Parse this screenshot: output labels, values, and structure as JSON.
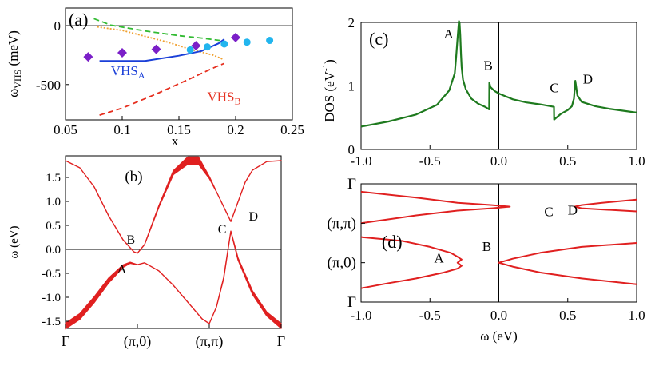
{
  "chart_data": [
    {
      "id": "a",
      "panel_label": "(a)",
      "type": "scatter",
      "xlabel": "x",
      "ylabel_main": "ω",
      "ylabel_sub": "VHS",
      "ylabel_unit": "(meV)",
      "xlim": [
        0.05,
        0.25
      ],
      "ylim": [
        -800,
        150
      ],
      "xticks": [
        "0.05",
        "0.1",
        "0.15",
        "0.2",
        "0.25"
      ],
      "xtick_values": [
        0.05,
        0.1,
        0.15,
        0.2,
        0.25
      ],
      "yticks": [
        "0",
        "-500"
      ],
      "ytick_values": [
        0,
        -500
      ],
      "zero_line": true,
      "curves": [
        {
          "style": "green-dashed",
          "color": "#33bb33",
          "x": [
            0.075,
            0.09,
            0.12,
            0.15,
            0.17,
            0.19
          ],
          "y": [
            60,
            5,
            -45,
            -85,
            -105,
            -130
          ]
        },
        {
          "style": "orange-dotted",
          "color": "#f0a030",
          "x": [
            0.078,
            0.1,
            0.12,
            0.14,
            0.16,
            0.18,
            0.19
          ],
          "y": [
            -10,
            -40,
            -90,
            -140,
            -200,
            -250,
            -290
          ]
        },
        {
          "style": "blue-solid",
          "color": "#1a3fd8",
          "x": [
            0.08,
            0.12,
            0.15,
            0.17,
            0.185,
            0.19
          ],
          "y": [
            -300,
            -300,
            -255,
            -215,
            -150,
            -115
          ]
        },
        {
          "style": "red-dashed",
          "color": "#e63020",
          "x": [
            0.08,
            0.1,
            0.13,
            0.16,
            0.18,
            0.19
          ],
          "y": [
            -760,
            -700,
            -580,
            -450,
            -360,
            -320
          ]
        }
      ],
      "markers": [
        {
          "name": "diamonds",
          "shape": "diamond",
          "color": "#7b1fc8",
          "x": [
            0.07,
            0.1,
            0.13,
            0.165,
            0.2
          ],
          "y": [
            -265,
            -230,
            -200,
            -170,
            -100
          ]
        },
        {
          "name": "circles",
          "shape": "circle",
          "color": "#22b5ee",
          "x": [
            0.16,
            0.175,
            0.19,
            0.21,
            0.23
          ],
          "y": [
            -205,
            -180,
            -155,
            -140,
            -125
          ]
        }
      ],
      "annotations": [
        {
          "text": "VHS",
          "sub": "A",
          "color": "#1a3fd8",
          "x": 0.09,
          "y": -420
        },
        {
          "text": "VHS",
          "sub": "B",
          "color": "#e63020",
          "x": 0.175,
          "y": -640
        }
      ]
    },
    {
      "id": "b",
      "panel_label": "(b)",
      "type": "line",
      "ylabel": "ω (eV)",
      "ylim": [
        -1.65,
        1.95
      ],
      "xcats": [
        "Γ",
        "(π,0)",
        "(π,π)",
        "Γ"
      ],
      "xcat_positions": [
        0,
        1,
        2,
        3
      ],
      "yticks": [
        "1.5",
        "1.0",
        "0.5",
        "0.0",
        "-0.5",
        "-1.0",
        "-1.5"
      ],
      "ytick_values": [
        1.5,
        1.0,
        0.5,
        0.0,
        -0.5,
        -1.0,
        -1.5
      ],
      "zero_line": true,
      "upper_band": {
        "color": "#e02020",
        "x": [
          0,
          0.2,
          0.4,
          0.6,
          0.8,
          0.95,
          1.0,
          1.1,
          1.3,
          1.5,
          1.7,
          1.85,
          2.0,
          2.1,
          2.3,
          2.5,
          2.6,
          2.8,
          3.0
        ],
        "y": [
          1.85,
          1.7,
          1.3,
          0.7,
          0.2,
          -0.05,
          -0.08,
          0.1,
          0.9,
          1.6,
          1.85,
          1.85,
          1.5,
          1.2,
          0.58,
          1.4,
          1.65,
          1.83,
          1.85
        ],
        "width": [
          0,
          0,
          0,
          0,
          0,
          0,
          0,
          0,
          0.03,
          0.08,
          0.15,
          0.15,
          0.04,
          0,
          0,
          0,
          0,
          0,
          0
        ]
      },
      "lower_band": {
        "color": "#e02020",
        "x": [
          0,
          0.2,
          0.4,
          0.6,
          0.8,
          0.9,
          1.0,
          1.1,
          1.3,
          1.5,
          1.7,
          1.9,
          2.0,
          2.1,
          2.2,
          2.3,
          2.4,
          2.6,
          2.8,
          3.0
        ],
        "y": [
          -1.6,
          -1.4,
          -1.05,
          -0.65,
          -0.35,
          -0.28,
          -0.32,
          -0.28,
          -0.45,
          -0.75,
          -1.1,
          -1.45,
          -1.55,
          -1.2,
          -0.6,
          0.38,
          -0.2,
          -0.9,
          -1.35,
          -1.6
        ],
        "width": [
          0.12,
          0.12,
          0.12,
          0.1,
          0.05,
          0.02,
          0,
          0,
          0,
          0,
          0,
          0,
          0,
          0,
          0.02,
          0,
          0.04,
          0.07,
          0.08,
          0.1
        ]
      },
      "point_labels": [
        {
          "text": "B",
          "x": 0.85,
          "y": 0.12
        },
        {
          "text": "A",
          "x": 0.72,
          "y": -0.5
        },
        {
          "text": "C",
          "x": 2.12,
          "y": 0.33
        },
        {
          "text": "D",
          "x": 2.55,
          "y": 0.6
        }
      ]
    },
    {
      "id": "c",
      "panel_label": "(c)",
      "type": "line",
      "ylabel": "DOS (eV",
      "ylabel_sup": "-1",
      "ylabel_close": ")",
      "xlim": [
        -1.0,
        1.0
      ],
      "ylim": [
        0,
        2
      ],
      "xticks": [
        "-1.0",
        "-0.5",
        "0.0",
        "0.5",
        "1.0"
      ],
      "xtick_values": [
        -1.0,
        -0.5,
        0.0,
        0.5,
        1.0
      ],
      "yticks": [
        "0",
        "1",
        "2"
      ],
      "ytick_values": [
        0,
        1,
        2
      ],
      "vline_x": 0.0,
      "series": [
        {
          "color": "#1e7a1e",
          "x": [
            -1.0,
            -0.8,
            -0.6,
            -0.45,
            -0.36,
            -0.32,
            -0.31,
            -0.3,
            -0.29,
            -0.285,
            -0.28,
            -0.275,
            -0.27,
            -0.26,
            -0.24,
            -0.2,
            -0.15,
            -0.1,
            -0.07,
            -0.069,
            -0.06,
            -0.03,
            0.0,
            0.1,
            0.2,
            0.3,
            0.4,
            0.401,
            0.45,
            0.5,
            0.53,
            0.545,
            0.555,
            0.56,
            0.57,
            0.6,
            0.7,
            0.8,
            1.0
          ],
          "y": [
            0.36,
            0.44,
            0.55,
            0.7,
            0.93,
            1.2,
            1.45,
            1.75,
            2.02,
            2.0,
            1.8,
            1.5,
            1.3,
            1.1,
            0.95,
            0.8,
            0.72,
            0.67,
            0.63,
            1.05,
            0.98,
            0.92,
            0.88,
            0.79,
            0.74,
            0.71,
            0.67,
            0.47,
            0.56,
            0.62,
            0.68,
            0.8,
            1.08,
            1.0,
            0.85,
            0.75,
            0.68,
            0.64,
            0.58
          ]
        }
      ],
      "point_labels": [
        {
          "text": "A",
          "x": -0.4,
          "y": 1.75
        },
        {
          "text": "B",
          "x": -0.11,
          "y": 1.25
        },
        {
          "text": "C",
          "x": 0.37,
          "y": 0.9
        },
        {
          "text": "D",
          "x": 0.61,
          "y": 1.04
        }
      ]
    },
    {
      "id": "d",
      "panel_label": "(d)",
      "type": "line",
      "xlabel": "ω (eV)",
      "xlim": [
        -1.0,
        1.0
      ],
      "ylim": [
        0,
        3
      ],
      "xticks": [
        "-1.0",
        "-0.5",
        "0.0",
        "0.5",
        "1.0"
      ],
      "xtick_values": [
        -1.0,
        -0.5,
        0.0,
        0.5,
        1.0
      ],
      "ycats": [
        "Γ",
        "(π,π)",
        "(π,0)",
        "Γ"
      ],
      "ycat_positions": [
        3,
        2,
        1,
        0
      ],
      "vline_x": 0.0,
      "series": [
        {
          "color": "#e02020",
          "x": [
            -1.0,
            -0.6,
            -0.3,
            -0.05,
            0.08,
            -0.05,
            -0.3,
            -0.6,
            -1.0
          ],
          "y": [
            2.8,
            2.65,
            2.52,
            2.46,
            2.42,
            2.38,
            2.32,
            2.2,
            2.0
          ]
        },
        {
          "color": "#e02020",
          "x": [
            1.0,
            0.75,
            0.6,
            0.55,
            0.6,
            0.75,
            1.0
          ],
          "y": [
            2.6,
            2.52,
            2.46,
            2.42,
            2.38,
            2.35,
            2.3
          ]
        },
        {
          "color": "#e02020",
          "x": [
            -1.0,
            -0.7,
            -0.5,
            -0.35,
            -0.3,
            -0.27,
            -0.3,
            -0.27,
            -0.3,
            -0.4,
            -0.6,
            -0.8,
            -1.0
          ],
          "y": [
            1.65,
            1.55,
            1.4,
            1.25,
            1.15,
            1.08,
            1.0,
            0.92,
            0.85,
            0.75,
            0.6,
            0.48,
            0.35
          ]
        },
        {
          "color": "#e02020",
          "x": [
            1.0,
            0.6,
            0.3,
            0.1,
            0.0,
            0.1,
            0.3,
            0.6,
            1.0
          ],
          "y": [
            1.5,
            1.4,
            1.25,
            1.1,
            1.0,
            0.9,
            0.75,
            0.6,
            0.45
          ]
        }
      ],
      "point_labels": [
        {
          "text": "C",
          "x": 0.33,
          "y": 2.18
        },
        {
          "text": "D",
          "x": 0.5,
          "y": 2.22
        },
        {
          "text": "A",
          "x": -0.47,
          "y": 1.0
        },
        {
          "text": "B",
          "x": -0.12,
          "y": 1.3
        }
      ]
    }
  ]
}
